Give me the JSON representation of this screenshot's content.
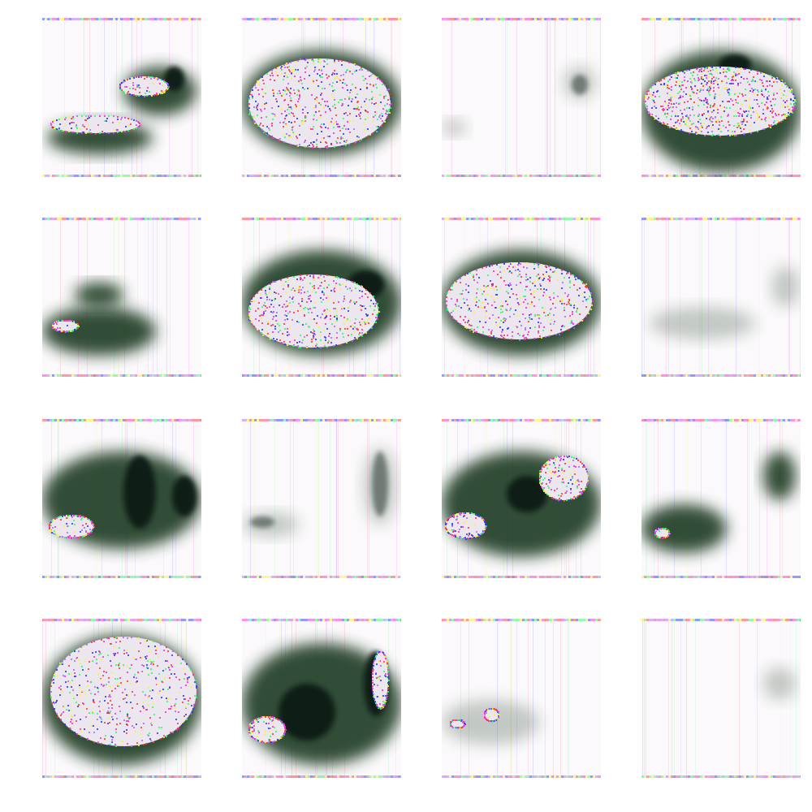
{
  "grid": {
    "rows": 4,
    "cols": 4
  },
  "palette": {
    "background": "#ffffff",
    "tile_background": "#fbf9fb",
    "shadow": "#1f3a22",
    "shape_fill": "#ece6ee",
    "noise": [
      "#ff2bd6",
      "#2bff6a",
      "#2a3cff",
      "#ffef2b",
      "#ff3b3b",
      "#b06bff"
    ]
  },
  "samples": [
    {
      "kind": "twin-blobs"
    },
    {
      "kind": "shoe-large"
    },
    {
      "kind": "faint-right-mark"
    },
    {
      "kind": "noisy-shoe"
    },
    {
      "kind": "small-left-blob"
    },
    {
      "kind": "shoe-mid"
    },
    {
      "kind": "shoe-mid-light"
    },
    {
      "kind": "faint-smudge"
    },
    {
      "kind": "left-blob-dark-top"
    },
    {
      "kind": "vertical-streak-right"
    },
    {
      "kind": "shoe-with-left-blob"
    },
    {
      "kind": "tiny-left-blob"
    },
    {
      "kind": "large-pale-shoe"
    },
    {
      "kind": "dark-mass-left-blob"
    },
    {
      "kind": "small-left-spots"
    },
    {
      "kind": "very-faint"
    }
  ]
}
